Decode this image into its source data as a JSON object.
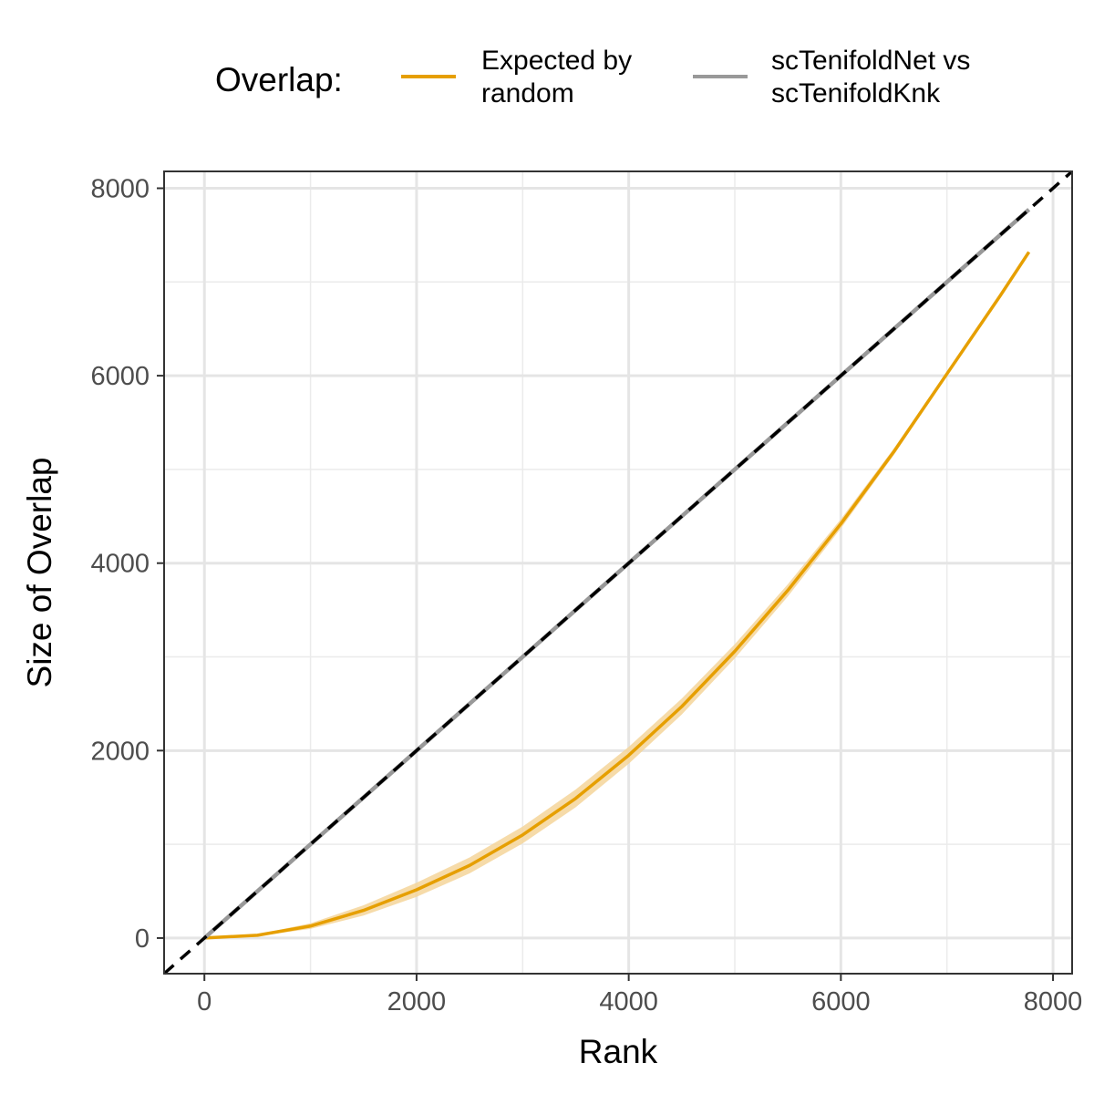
{
  "chart_data": {
    "type": "line",
    "xlabel": "Rank",
    "ylabel": "Size of Overlap",
    "xlim": [
      -380,
      8180
    ],
    "ylim": [
      -380,
      8180
    ],
    "x_ticks": [
      0,
      2000,
      4000,
      6000,
      8000
    ],
    "y_ticks": [
      0,
      2000,
      4000,
      6000,
      8000
    ],
    "x_tick_labels": [
      "0",
      "2000",
      "4000",
      "6000",
      "8000"
    ],
    "y_tick_labels": [
      "0",
      "2000",
      "4000",
      "6000",
      "8000"
    ],
    "grid": true,
    "legend": {
      "title": "Overlap:",
      "placement": "top",
      "entries": [
        {
          "label_lines": [
            "Expected by",
            "random"
          ],
          "color": "#E69F00"
        },
        {
          "label_lines": [
            "scTenifoldNet vs",
            "scTenifoldKnk"
          ],
          "color": "#999999"
        }
      ]
    },
    "series": [
      {
        "name": "Expected by random",
        "color": "#E69F00",
        "band_color": "#F5D59A",
        "x": [
          0,
          500,
          1000,
          1500,
          2000,
          2500,
          3000,
          3500,
          4000,
          4500,
          5000,
          5500,
          6000,
          6500,
          7000,
          7500,
          7773
        ],
        "y": [
          0,
          30,
          128,
          295,
          515,
          775,
          1100,
          1490,
          1950,
          2470,
          3060,
          3710,
          4420,
          5190,
          6020,
          6850,
          7320
        ],
        "band": [
          0,
          10,
          30,
          55,
          75,
          85,
          90,
          95,
          90,
          85,
          75,
          65,
          50,
          35,
          20,
          10,
          0
        ]
      },
      {
        "name": "scTenifoldNet vs scTenifoldKnk",
        "color": "#999999",
        "x": [
          0,
          7773
        ],
        "y": [
          0,
          7773
        ]
      }
    ],
    "reference_line": {
      "slope": 1,
      "intercept": 0,
      "style": "dashed",
      "color": "#000000"
    }
  }
}
